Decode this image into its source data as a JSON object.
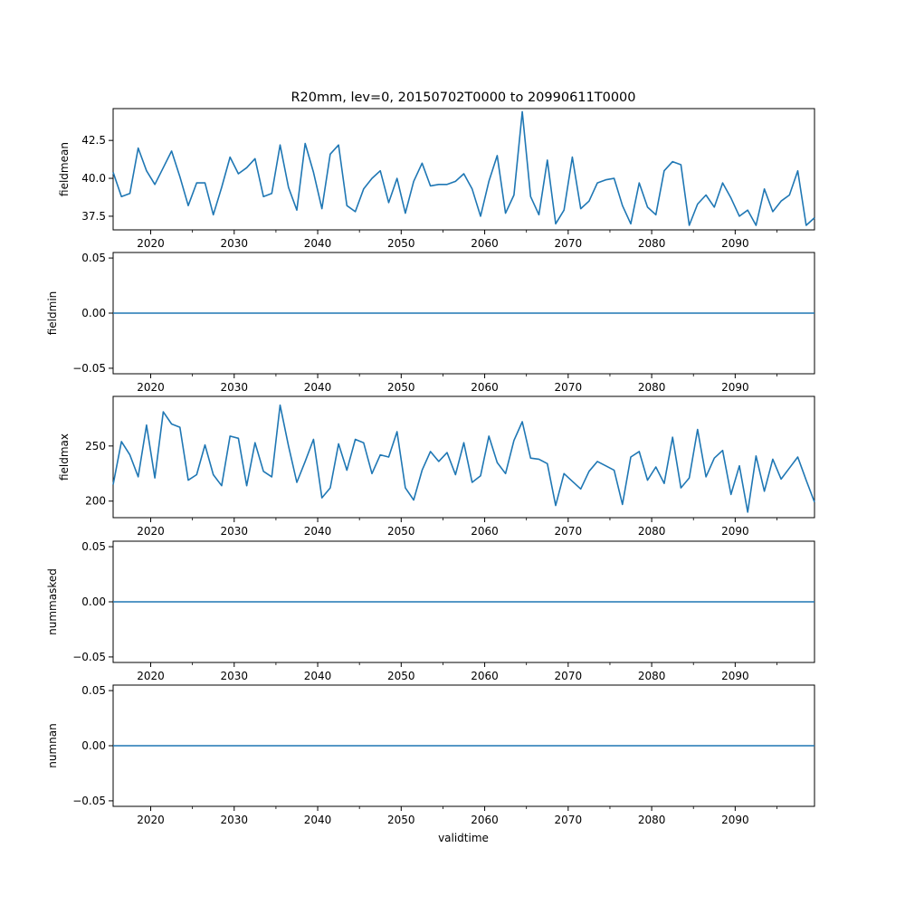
{
  "figure": {
    "title": "R20mm, lev=0, 20150702T0000 to 20990611T0000",
    "xlabel": "validtime"
  },
  "colors": {
    "line": "#1f77b4",
    "axes": "#000000",
    "background": "#ffffff"
  },
  "chart_data": [
    {
      "type": "line",
      "ylabel": "fieldmean",
      "xlim": [
        2015.5,
        2099.5
      ],
      "ylim": [
        36.6,
        44.6
      ],
      "x_ticks": [
        "2020",
        "2030",
        "2040",
        "2050",
        "2060",
        "2070",
        "2080",
        "2090"
      ],
      "y_ticks": [
        "37.5",
        "40.0",
        "42.5"
      ],
      "x": [
        2015.5,
        2016.5,
        2017.5,
        2018.5,
        2019.5,
        2020.5,
        2021.5,
        2022.5,
        2023.5,
        2024.5,
        2025.5,
        2026.5,
        2027.5,
        2028.5,
        2029.5,
        2030.5,
        2031.5,
        2032.5,
        2033.5,
        2034.5,
        2035.5,
        2036.5,
        2037.5,
        2038.5,
        2039.5,
        2040.5,
        2041.5,
        2042.5,
        2043.5,
        2044.5,
        2045.5,
        2046.5,
        2047.5,
        2048.5,
        2049.5,
        2050.5,
        2051.5,
        2052.5,
        2053.5,
        2054.5,
        2055.5,
        2056.5,
        2057.5,
        2058.5,
        2059.5,
        2060.5,
        2061.5,
        2062.5,
        2063.5,
        2064.5,
        2065.5,
        2066.5,
        2067.5,
        2068.5,
        2069.5,
        2070.5,
        2071.5,
        2072.5,
        2073.5,
        2074.5,
        2075.5,
        2076.5,
        2077.5,
        2078.5,
        2079.5,
        2080.5,
        2081.5,
        2082.5,
        2083.5,
        2084.5,
        2085.5,
        2086.5,
        2087.5,
        2088.5,
        2089.5,
        2090.5,
        2091.5,
        2092.5,
        2093.5,
        2094.5,
        2095.5,
        2096.5,
        2097.5,
        2098.5,
        2099.5
      ],
      "values": [
        40.4,
        38.8,
        39.0,
        42.0,
        40.5,
        39.6,
        40.7,
        41.8,
        40.1,
        38.2,
        39.7,
        39.7,
        37.6,
        39.4,
        41.4,
        40.3,
        40.7,
        41.3,
        38.8,
        39.0,
        42.2,
        39.4,
        37.9,
        42.3,
        40.4,
        38.0,
        41.6,
        42.2,
        38.2,
        37.8,
        39.3,
        40.0,
        40.5,
        38.4,
        40.0,
        37.7,
        39.8,
        41.0,
        39.5,
        39.6,
        39.6,
        39.8,
        40.3,
        39.3,
        37.5,
        39.8,
        41.5,
        37.7,
        38.9,
        44.4,
        38.8,
        37.6,
        41.2,
        37.0,
        37.9,
        41.4,
        38.0,
        38.5,
        39.7,
        39.9,
        40.0,
        38.2,
        37.0,
        39.7,
        38.1,
        37.6,
        40.5,
        41.1,
        40.9,
        36.9,
        38.3,
        38.9,
        38.1,
        39.7,
        38.7,
        37.5,
        37.9,
        36.9,
        39.3,
        37.8,
        38.5,
        38.9,
        40.5,
        36.9,
        37.4
      ]
    },
    {
      "type": "line",
      "ylabel": "fieldmin",
      "xlim": [
        2015.5,
        2099.5
      ],
      "ylim": [
        -0.055,
        0.055
      ],
      "x_ticks": [
        "2020",
        "2030",
        "2040",
        "2050",
        "2060",
        "2070",
        "2080",
        "2090"
      ],
      "y_ticks": [
        "−0.05",
        "0.00",
        "0.05"
      ],
      "x": [
        2015.5,
        2099.5
      ],
      "values": [
        0,
        0
      ]
    },
    {
      "type": "line",
      "ylabel": "fieldmax",
      "xlim": [
        2015.5,
        2099.5
      ],
      "ylim": [
        185,
        295
      ],
      "x_ticks": [
        "2020",
        "2030",
        "2040",
        "2050",
        "2060",
        "2070",
        "2080",
        "2090"
      ],
      "y_ticks": [
        "200",
        "250"
      ],
      "x": [
        2015.5,
        2016.5,
        2017.5,
        2018.5,
        2019.5,
        2020.5,
        2021.5,
        2022.5,
        2023.5,
        2024.5,
        2025.5,
        2026.5,
        2027.5,
        2028.5,
        2029.5,
        2030.5,
        2031.5,
        2032.5,
        2033.5,
        2034.5,
        2035.5,
        2036.5,
        2037.5,
        2038.5,
        2039.5,
        2040.5,
        2041.5,
        2042.5,
        2043.5,
        2044.5,
        2045.5,
        2046.5,
        2047.5,
        2048.5,
        2049.5,
        2050.5,
        2051.5,
        2052.5,
        2053.5,
        2054.5,
        2055.5,
        2056.5,
        2057.5,
        2058.5,
        2059.5,
        2060.5,
        2061.5,
        2062.5,
        2063.5,
        2064.5,
        2065.5,
        2066.5,
        2067.5,
        2068.5,
        2069.5,
        2070.5,
        2071.5,
        2072.5,
        2073.5,
        2074.5,
        2075.5,
        2076.5,
        2077.5,
        2078.5,
        2079.5,
        2080.5,
        2081.5,
        2082.5,
        2083.5,
        2084.5,
        2085.5,
        2086.5,
        2087.5,
        2088.5,
        2089.5,
        2090.5,
        2091.5,
        2092.5,
        2093.5,
        2094.5,
        2095.5,
        2096.5,
        2097.5,
        2098.5,
        2099.5
      ],
      "values": [
        215,
        254,
        242,
        222,
        269,
        221,
        281,
        270,
        267,
        219,
        224,
        251,
        224,
        214,
        259,
        257,
        214,
        253,
        227,
        222,
        287,
        250,
        217,
        236,
        256,
        203,
        212,
        252,
        228,
        256,
        253,
        225,
        242,
        240,
        263,
        212,
        201,
        228,
        245,
        236,
        244,
        224,
        253,
        217,
        223,
        259,
        235,
        225,
        255,
        272,
        239,
        238,
        234,
        196,
        225,
        218,
        211,
        227,
        236,
        232,
        228,
        197,
        240,
        245,
        219,
        231,
        216,
        258,
        212,
        221,
        265,
        222,
        239,
        246,
        206,
        232,
        190,
        241,
        209,
        238,
        220,
        230,
        240,
        219,
        199
      ]
    },
    {
      "type": "line",
      "ylabel": "nummasked",
      "xlim": [
        2015.5,
        2099.5
      ],
      "ylim": [
        -0.055,
        0.055
      ],
      "x_ticks": [
        "2020",
        "2030",
        "2040",
        "2050",
        "2060",
        "2070",
        "2080",
        "2090"
      ],
      "y_ticks": [
        "−0.05",
        "0.00",
        "0.05"
      ],
      "x": [
        2015.5,
        2099.5
      ],
      "values": [
        0,
        0
      ]
    },
    {
      "type": "line",
      "ylabel": "numnan",
      "xlim": [
        2015.5,
        2099.5
      ],
      "ylim": [
        -0.055,
        0.055
      ],
      "x_ticks": [
        "2020",
        "2030",
        "2040",
        "2050",
        "2060",
        "2070",
        "2080",
        "2090"
      ],
      "y_ticks": [
        "−0.05",
        "0.00",
        "0.05"
      ],
      "x": [
        2015.5,
        2099.5
      ],
      "values": [
        0,
        0
      ]
    }
  ]
}
